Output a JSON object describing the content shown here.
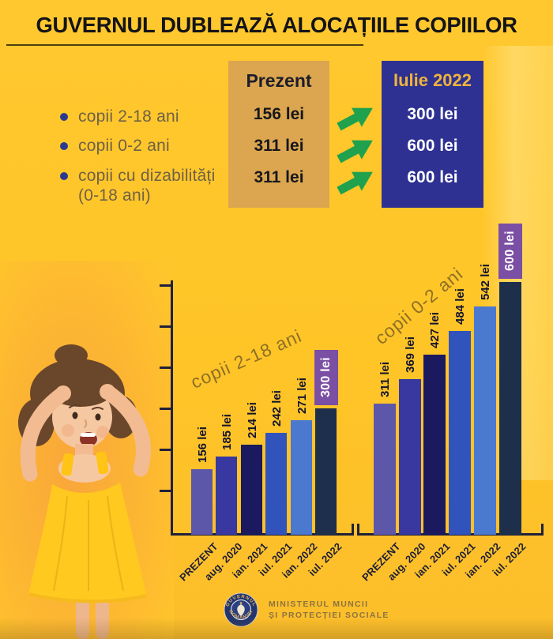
{
  "title": "GUVERNUL DUBLEAZĂ ALOCAȚIILE COPIILOR",
  "comparison": {
    "present_header": "Prezent",
    "future_header": "Iulie 2022",
    "rows": [
      {
        "label": "copii 2-18 ani",
        "label2": "",
        "present": "156 lei",
        "future": "300 lei"
      },
      {
        "label": "copii 0-2 ani",
        "label2": "",
        "present": "311 lei",
        "future": "600 lei"
      },
      {
        "label": "copii cu dizabilități",
        "label2": "(0-18 ani)",
        "present": "311 lei",
        "future": "600 lei"
      }
    ]
  },
  "chart_data": [
    {
      "type": "bar",
      "title": "copii 2-18 ani",
      "categories": [
        "PREZENT",
        "aug. 2020",
        "ian. 2021",
        "iul. 2021",
        "ian. 2022",
        "iul. 2022"
      ],
      "values": [
        156,
        185,
        214,
        242,
        271,
        300
      ],
      "value_labels": [
        "156 lei",
        "185 lei",
        "214 lei",
        "242 lei",
        "271 lei",
        "300 lei"
      ],
      "highlight": {
        "index": 5,
        "label": "300 lei"
      },
      "unit": "lei",
      "ylim": [
        0,
        330
      ],
      "grid": false,
      "legend": "none"
    },
    {
      "type": "bar",
      "title": "copii 0-2 ani",
      "categories": [
        "PREZENT",
        "aug. 2020",
        "ian. 2021",
        "iul. 2021",
        "ian. 2022",
        "iul. 2022"
      ],
      "values": [
        311,
        369,
        427,
        484,
        542,
        600
      ],
      "value_labels": [
        "311 lei",
        "369 lei",
        "427 lei",
        "484 lei",
        "542 lei",
        "600 lei"
      ],
      "highlight": {
        "index": 5,
        "label": "600 lei"
      },
      "unit": "lei",
      "ylim": [
        0,
        660
      ],
      "grid": false,
      "legend": "none"
    }
  ],
  "footer": {
    "logo_top": "GUVERNUL",
    "logo_bottom": "ROMÂNIEI",
    "ministry_line1": "MINISTERUL MUNCII",
    "ministry_line2": "ȘI PROTECȚIEI SOCIALE"
  },
  "colors": {
    "background": "#FFC62B",
    "title_text": "#141418",
    "present_box": "#DBA64F",
    "future_box": "#2E3192",
    "future_header_text": "#F0B43C",
    "arrow_green": "#1FA14E",
    "badge_purple": "#7B4FA3",
    "axis": "#20203A",
    "diagonal_label": "#8D7026",
    "bar_colors": [
      "#5D57A9",
      "#3938A0",
      "#1B1A5E",
      "#3053BC",
      "#4B79CF",
      "#1D2F4B"
    ]
  }
}
